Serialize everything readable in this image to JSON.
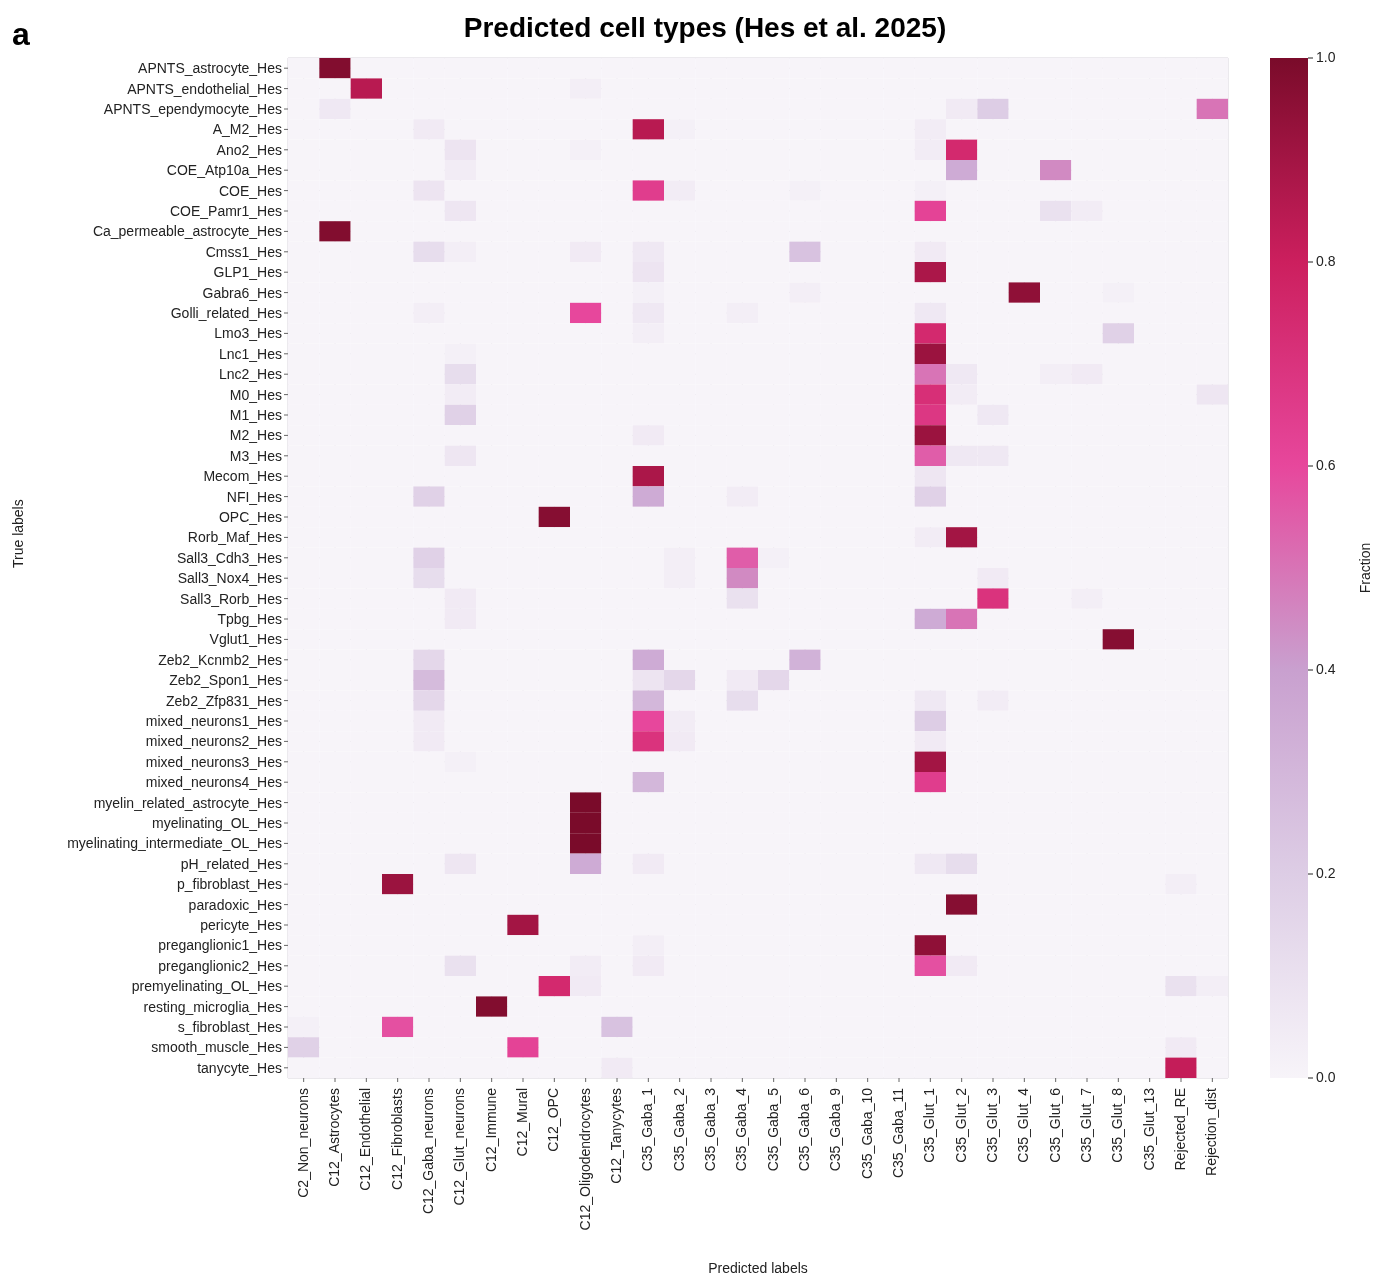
{
  "chart_data": {
    "type": "heatmap",
    "title": "Predicted cell types (Hes et al. 2025)",
    "xlabel": "Predicted labels",
    "ylabel": "True labels",
    "clabel": "Fraction",
    "annotations": [
      "a"
    ],
    "grid": true,
    "categories": [
      "C2_Non_neurons",
      "C12_Astrocytes",
      "C12_Endothelial",
      "C12_Fibroblasts",
      "C12_Gaba_neurons",
      "C12_Glut_neurons",
      "C12_Immune",
      "C12_Mural",
      "C12_OPC",
      "C12_Oligodendrocytes",
      "C12_Tanycytes",
      "C35_Gaba_1",
      "C35_Gaba_2",
      "C35_Gaba_3",
      "C35_Gaba_4",
      "C35_Gaba_5",
      "C35_Gaba_6",
      "C35_Gaba_9",
      "C35_Gaba_10",
      "C35_Gaba_11",
      "C35_Glut_1",
      "C35_Glut_2",
      "C35_Glut_3",
      "C35_Glut_4",
      "C35_Glut_6",
      "C35_Glut_7",
      "C35_Glut_8",
      "C35_Glut_13",
      "Rejected_RE",
      "Rejection_dist"
    ],
    "y_categories": [
      "APNTS_astrocyte_Hes",
      "APNTS_endothelial_Hes",
      "APNTS_ependymocyte_Hes",
      "A_M2_Hes",
      "Ano2_Hes",
      "COE_Atp10a_Hes",
      "COE_Hes",
      "COE_Pamr1_Hes",
      "Ca_permeable_astrocyte_Hes",
      "Cmss1_Hes",
      "GLP1_Hes",
      "Gabra6_Hes",
      "Golli_related_Hes",
      "Lmo3_Hes",
      "Lnc1_Hes",
      "Lnc2_Hes",
      "M0_Hes",
      "M1_Hes",
      "M2_Hes",
      "M3_Hes",
      "Mecom_Hes",
      "NFI_Hes",
      "OPC_Hes",
      "Rorb_Maf_Hes",
      "Sall3_Cdh3_Hes",
      "Sall3_Nox4_Hes",
      "Sall3_Rorb_Hes",
      "Tpbg_Hes",
      "Vglut1_Hes",
      "Zeb2_Kcnmb2_Hes",
      "Zeb2_Spon1_Hes",
      "Zeb2_Zfp831_Hes",
      "mixed_neurons1_Hes",
      "mixed_neurons2_Hes",
      "mixed_neurons3_Hes",
      "mixed_neurons4_Hes",
      "myelin_related_astrocyte_Hes",
      "myelinating_OL_Hes",
      "myelinating_intermediate_OL_Hes",
      "pH_related_Hes",
      "p_fibroblast_Hes",
      "paradoxic_Hes",
      "pericyte_Hes",
      "preganglionic1_Hes",
      "preganglionic2_Hes",
      "premyelinating_OL_Hes",
      "resting_microglia_Hes",
      "s_fibroblast_Hes",
      "smooth_muscle_Hes",
      "tanycyte_Hes"
    ],
    "clim": [
      0,
      1
    ],
    "cticks": [
      {
        "value": 0,
        "label": "0.0"
      },
      {
        "value": 0.2,
        "label": "0.2"
      },
      {
        "value": 0.4,
        "label": "0.4"
      },
      {
        "value": 0.6,
        "label": "0.6"
      },
      {
        "value": 0.8,
        "label": "0.8"
      },
      {
        "value": 1,
        "label": "1.0"
      }
    ],
    "cells": [
      [
        0,
        0.98,
        0,
        0,
        0,
        0,
        0,
        0,
        0,
        0,
        0,
        0,
        0,
        0,
        0,
        0,
        0,
        0,
        0,
        0,
        0,
        0,
        0,
        0,
        0,
        0,
        0,
        0,
        0,
        0
      ],
      [
        0,
        0,
        0.85,
        0,
        0,
        0,
        0,
        0,
        0,
        0.03,
        0,
        0,
        0,
        0,
        0,
        0,
        0,
        0,
        0,
        0,
        0,
        0,
        0,
        0,
        0,
        0,
        0,
        0,
        0,
        0
      ],
      [
        0,
        0.06,
        0,
        0,
        0,
        0,
        0,
        0,
        0,
        0,
        0,
        0,
        0,
        0,
        0,
        0,
        0,
        0,
        0,
        0,
        0,
        0.05,
        0.2,
        0,
        0,
        0,
        0,
        0,
        0,
        0.5
      ],
      [
        0,
        0,
        0,
        0,
        0.05,
        0,
        0,
        0,
        0,
        0,
        0,
        0.85,
        0.02,
        0,
        0,
        0,
        0,
        0,
        0,
        0,
        0.04,
        0,
        0,
        0,
        0,
        0,
        0,
        0,
        0,
        0
      ],
      [
        0,
        0,
        0,
        0,
        0,
        0.08,
        0,
        0,
        0,
        0.02,
        0,
        0,
        0,
        0,
        0,
        0,
        0,
        0,
        0,
        0,
        0.04,
        0.75,
        0,
        0,
        0,
        0,
        0,
        0,
        0,
        0
      ],
      [
        0,
        0,
        0,
        0,
        0,
        0.04,
        0,
        0,
        0,
        0,
        0,
        0,
        0,
        0,
        0,
        0,
        0,
        0,
        0,
        0,
        0,
        0.35,
        0,
        0,
        0.45,
        0,
        0,
        0,
        0,
        0
      ],
      [
        0,
        0,
        0,
        0,
        0.08,
        0,
        0,
        0,
        0,
        0,
        0,
        0.65,
        0.04,
        0,
        0,
        0,
        0.02,
        0,
        0,
        0,
        0.02,
        0,
        0,
        0,
        0,
        0,
        0,
        0,
        0,
        0
      ],
      [
        0,
        0,
        0,
        0,
        0,
        0.07,
        0,
        0,
        0,
        0,
        0,
        0,
        0,
        0,
        0,
        0,
        0,
        0,
        0,
        0,
        0.62,
        0,
        0,
        0,
        0.1,
        0.04,
        0,
        0,
        0,
        0
      ],
      [
        0,
        0.98,
        0,
        0,
        0,
        0,
        0,
        0,
        0,
        0,
        0,
        0,
        0,
        0,
        0,
        0,
        0,
        0,
        0,
        0,
        0,
        0,
        0,
        0,
        0,
        0,
        0,
        0,
        0,
        0
      ],
      [
        0,
        0,
        0,
        0,
        0.12,
        0.03,
        0,
        0,
        0,
        0.05,
        0,
        0.06,
        0,
        0,
        0,
        0,
        0.25,
        0,
        0,
        0,
        0.05,
        0,
        0,
        0,
        0,
        0,
        0,
        0,
        0,
        0
      ],
      [
        0,
        0,
        0,
        0,
        0,
        0,
        0,
        0,
        0,
        0,
        0,
        0.08,
        0,
        0,
        0,
        0,
        0,
        0,
        0,
        0,
        0.88,
        0,
        0,
        0,
        0,
        0,
        0,
        0,
        0,
        0
      ],
      [
        0,
        0,
        0,
        0,
        0,
        0,
        0,
        0,
        0,
        0,
        0,
        0.02,
        0,
        0,
        0,
        0,
        0.03,
        0,
        0,
        0,
        0,
        0,
        0,
        0.95,
        0,
        0,
        0.02,
        0,
        0,
        0
      ],
      [
        0,
        0,
        0,
        0,
        0.03,
        0,
        0,
        0,
        0,
        0.6,
        0,
        0.06,
        0,
        0,
        0.03,
        0,
        0,
        0,
        0,
        0,
        0.06,
        0,
        0,
        0,
        0,
        0,
        0,
        0,
        0,
        0
      ],
      [
        0,
        0,
        0,
        0,
        0,
        0,
        0,
        0,
        0,
        0,
        0,
        0.03,
        0,
        0,
        0,
        0,
        0,
        0,
        0,
        0,
        0.75,
        0,
        0,
        0,
        0,
        0,
        0.18,
        0,
        0,
        0
      ],
      [
        0,
        0,
        0,
        0,
        0,
        0.02,
        0,
        0,
        0,
        0,
        0,
        0,
        0,
        0,
        0,
        0,
        0,
        0,
        0,
        0,
        0.92,
        0,
        0,
        0,
        0,
        0,
        0,
        0,
        0,
        0
      ],
      [
        0,
        0,
        0,
        0,
        0,
        0.12,
        0,
        0,
        0,
        0,
        0,
        0,
        0,
        0,
        0,
        0,
        0,
        0,
        0,
        0,
        0.5,
        0.06,
        0,
        0,
        0.03,
        0.05,
        0,
        0,
        0,
        0
      ],
      [
        0,
        0,
        0,
        0,
        0,
        0.04,
        0,
        0,
        0,
        0,
        0,
        0,
        0,
        0,
        0,
        0,
        0,
        0,
        0,
        0,
        0.72,
        0.04,
        0,
        0,
        0,
        0,
        0,
        0,
        0,
        0.07
      ],
      [
        0,
        0,
        0,
        0,
        0,
        0.18,
        0,
        0,
        0,
        0,
        0,
        0,
        0,
        0,
        0,
        0,
        0,
        0,
        0,
        0,
        0.68,
        0,
        0.06,
        0,
        0,
        0,
        0,
        0,
        0,
        0
      ],
      [
        0,
        0,
        0,
        0,
        0,
        0,
        0,
        0,
        0,
        0,
        0,
        0.05,
        0,
        0,
        0,
        0,
        0,
        0,
        0,
        0,
        0.92,
        0,
        0,
        0,
        0,
        0,
        0,
        0,
        0,
        0
      ],
      [
        0,
        0,
        0,
        0,
        0,
        0.07,
        0,
        0,
        0,
        0,
        0,
        0,
        0,
        0,
        0,
        0,
        0,
        0,
        0,
        0,
        0.55,
        0.06,
        0.06,
        0,
        0,
        0,
        0,
        0,
        0,
        0
      ],
      [
        0,
        0,
        0,
        0,
        0,
        0,
        0,
        0,
        0,
        0,
        0,
        0.88,
        0,
        0,
        0,
        0,
        0,
        0,
        0,
        0,
        0.07,
        0,
        0,
        0,
        0,
        0,
        0,
        0,
        0,
        0
      ],
      [
        0,
        0,
        0,
        0,
        0.18,
        0,
        0,
        0,
        0,
        0,
        0,
        0.35,
        0,
        0,
        0.04,
        0,
        0,
        0,
        0,
        0,
        0.18,
        0,
        0,
        0,
        0,
        0,
        0,
        0,
        0,
        0
      ],
      [
        0,
        0,
        0,
        0,
        0,
        0,
        0,
        0,
        0.97,
        0,
        0,
        0,
        0,
        0,
        0,
        0,
        0,
        0,
        0,
        0,
        0,
        0,
        0,
        0,
        0,
        0,
        0,
        0,
        0,
        0
      ],
      [
        0,
        0,
        0,
        0,
        0,
        0,
        0,
        0,
        0,
        0,
        0,
        0,
        0,
        0,
        0,
        0,
        0,
        0,
        0,
        0,
        0.04,
        0.9,
        0,
        0,
        0,
        0,
        0,
        0,
        0,
        0
      ],
      [
        0,
        0,
        0,
        0,
        0.18,
        0,
        0,
        0,
        0,
        0,
        0,
        0,
        0.03,
        0,
        0.55,
        0.02,
        0,
        0,
        0,
        0,
        0,
        0,
        0,
        0,
        0,
        0,
        0,
        0,
        0,
        0
      ],
      [
        0,
        0,
        0,
        0,
        0.12,
        0,
        0,
        0,
        0,
        0,
        0,
        0,
        0.03,
        0,
        0.45,
        0,
        0,
        0,
        0,
        0,
        0,
        0,
        0.05,
        0,
        0,
        0,
        0,
        0,
        0,
        0
      ],
      [
        0,
        0,
        0,
        0,
        0,
        0.05,
        0,
        0,
        0,
        0,
        0,
        0,
        0,
        0,
        0.1,
        0,
        0,
        0,
        0,
        0,
        0,
        0,
        0.7,
        0,
        0,
        0.03,
        0,
        0,
        0,
        0
      ],
      [
        0,
        0,
        0,
        0,
        0,
        0.05,
        0,
        0,
        0,
        0,
        0,
        0,
        0,
        0,
        0,
        0,
        0,
        0,
        0,
        0,
        0.35,
        0.5,
        0,
        0,
        0,
        0,
        0,
        0,
        0,
        0
      ],
      [
        0,
        0,
        0,
        0,
        0,
        0,
        0,
        0,
        0,
        0,
        0,
        0,
        0,
        0,
        0,
        0,
        0,
        0,
        0,
        0,
        0,
        0,
        0,
        0,
        0,
        0,
        0.97,
        0,
        0,
        0
      ],
      [
        0,
        0,
        0,
        0,
        0.15,
        0,
        0,
        0,
        0,
        0,
        0,
        0.35,
        0,
        0,
        0,
        0,
        0.32,
        0,
        0,
        0,
        0,
        0,
        0,
        0,
        0,
        0,
        0,
        0,
        0,
        0
      ],
      [
        0,
        0,
        0,
        0,
        0.28,
        0,
        0,
        0,
        0,
        0,
        0,
        0.08,
        0.15,
        0,
        0.05,
        0.15,
        0,
        0,
        0,
        0,
        0,
        0,
        0,
        0,
        0,
        0,
        0,
        0,
        0,
        0
      ],
      [
        0,
        0,
        0,
        0,
        0.15,
        0,
        0,
        0,
        0,
        0,
        0,
        0.3,
        0,
        0,
        0.12,
        0,
        0,
        0,
        0,
        0,
        0.06,
        0,
        0.04,
        0,
        0,
        0,
        0,
        0,
        0,
        0
      ],
      [
        0,
        0,
        0,
        0,
        0.05,
        0,
        0,
        0,
        0,
        0,
        0,
        0.6,
        0.04,
        0,
        0,
        0,
        0,
        0,
        0,
        0,
        0.2,
        0,
        0,
        0,
        0,
        0,
        0,
        0,
        0,
        0
      ],
      [
        0,
        0,
        0,
        0,
        0.05,
        0,
        0,
        0,
        0,
        0,
        0,
        0.7,
        0.05,
        0,
        0,
        0,
        0,
        0,
        0,
        0,
        0.05,
        0,
        0,
        0,
        0,
        0,
        0,
        0,
        0,
        0
      ],
      [
        0,
        0,
        0,
        0,
        0,
        0.02,
        0,
        0,
        0,
        0,
        0,
        0,
        0,
        0,
        0,
        0,
        0,
        0,
        0,
        0,
        0.9,
        0,
        0,
        0,
        0,
        0,
        0,
        0,
        0,
        0
      ],
      [
        0,
        0,
        0,
        0,
        0,
        0,
        0,
        0,
        0,
        0,
        0,
        0.3,
        0,
        0,
        0,
        0,
        0,
        0,
        0,
        0,
        0.65,
        0,
        0,
        0,
        0,
        0,
        0,
        0,
        0,
        0
      ],
      [
        0,
        0,
        0,
        0,
        0,
        0,
        0,
        0,
        0,
        1,
        0,
        0,
        0,
        0,
        0,
        0,
        0,
        0,
        0,
        0,
        0,
        0,
        0,
        0,
        0,
        0,
        0,
        0,
        0,
        0
      ],
      [
        0,
        0,
        0,
        0,
        0,
        0,
        0,
        0,
        0,
        1,
        0,
        0,
        0,
        0,
        0,
        0,
        0,
        0,
        0,
        0,
        0,
        0,
        0,
        0,
        0,
        0,
        0,
        0,
        0,
        0
      ],
      [
        0,
        0,
        0,
        0,
        0,
        0,
        0,
        0,
        0,
        1,
        0,
        0,
        0,
        0,
        0,
        0,
        0,
        0,
        0,
        0,
        0,
        0,
        0,
        0,
        0,
        0,
        0,
        0,
        0,
        0
      ],
      [
        0,
        0,
        0,
        0,
        0,
        0.07,
        0,
        0,
        0,
        0.35,
        0,
        0.05,
        0,
        0,
        0,
        0,
        0,
        0,
        0,
        0,
        0.06,
        0.12,
        0,
        0,
        0,
        0,
        0,
        0,
        0,
        0
      ],
      [
        0,
        0,
        0,
        0.92,
        0,
        0,
        0,
        0,
        0,
        0,
        0,
        0,
        0,
        0,
        0,
        0,
        0,
        0,
        0,
        0,
        0,
        0,
        0,
        0,
        0,
        0,
        0,
        0,
        0.03,
        0
      ],
      [
        0,
        0,
        0,
        0,
        0,
        0,
        0,
        0,
        0,
        0,
        0,
        0,
        0,
        0,
        0,
        0,
        0,
        0,
        0,
        0,
        0,
        0.97,
        0,
        0,
        0,
        0,
        0,
        0,
        0,
        0
      ],
      [
        0,
        0,
        0,
        0,
        0,
        0,
        0,
        0.9,
        0,
        0,
        0,
        0,
        0,
        0,
        0,
        0,
        0,
        0,
        0,
        0,
        0,
        0,
        0,
        0,
        0,
        0,
        0,
        0,
        0,
        0
      ],
      [
        0,
        0,
        0,
        0,
        0,
        0,
        0,
        0,
        0,
        0,
        0,
        0.03,
        0,
        0,
        0,
        0,
        0,
        0,
        0,
        0,
        0.95,
        0,
        0,
        0,
        0,
        0,
        0,
        0,
        0,
        0
      ],
      [
        0,
        0,
        0,
        0,
        0,
        0.1,
        0,
        0,
        0,
        0.04,
        0,
        0.05,
        0,
        0,
        0,
        0,
        0,
        0,
        0,
        0,
        0.58,
        0.05,
        0,
        0,
        0,
        0,
        0,
        0,
        0,
        0
      ],
      [
        0,
        0,
        0,
        0,
        0,
        0,
        0,
        0,
        0.75,
        0.05,
        0,
        0,
        0,
        0,
        0,
        0,
        0,
        0,
        0,
        0,
        0,
        0,
        0,
        0,
        0,
        0,
        0,
        0,
        0.1,
        0.03
      ],
      [
        0,
        0,
        0,
        0,
        0,
        0,
        0.98,
        0,
        0,
        0,
        0,
        0,
        0,
        0,
        0,
        0,
        0,
        0,
        0,
        0,
        0,
        0,
        0,
        0,
        0,
        0,
        0,
        0,
        0,
        0
      ],
      [
        0.02,
        0,
        0,
        0.58,
        0,
        0,
        0,
        0,
        0,
        0,
        0.25,
        0,
        0,
        0,
        0,
        0,
        0,
        0,
        0,
        0,
        0,
        0,
        0,
        0,
        0,
        0,
        0,
        0,
        0,
        0
      ],
      [
        0.18,
        0,
        0,
        0,
        0,
        0,
        0,
        0.62,
        0,
        0,
        0,
        0,
        0,
        0,
        0,
        0,
        0,
        0,
        0,
        0,
        0,
        0,
        0,
        0,
        0,
        0,
        0,
        0,
        0.05,
        0
      ],
      [
        0,
        0,
        0,
        0,
        0,
        0,
        0,
        0,
        0,
        0,
        0.05,
        0,
        0,
        0,
        0,
        0,
        0,
        0,
        0,
        0,
        0,
        0,
        0,
        0,
        0,
        0,
        0,
        0,
        0.82,
        0
      ]
    ]
  }
}
